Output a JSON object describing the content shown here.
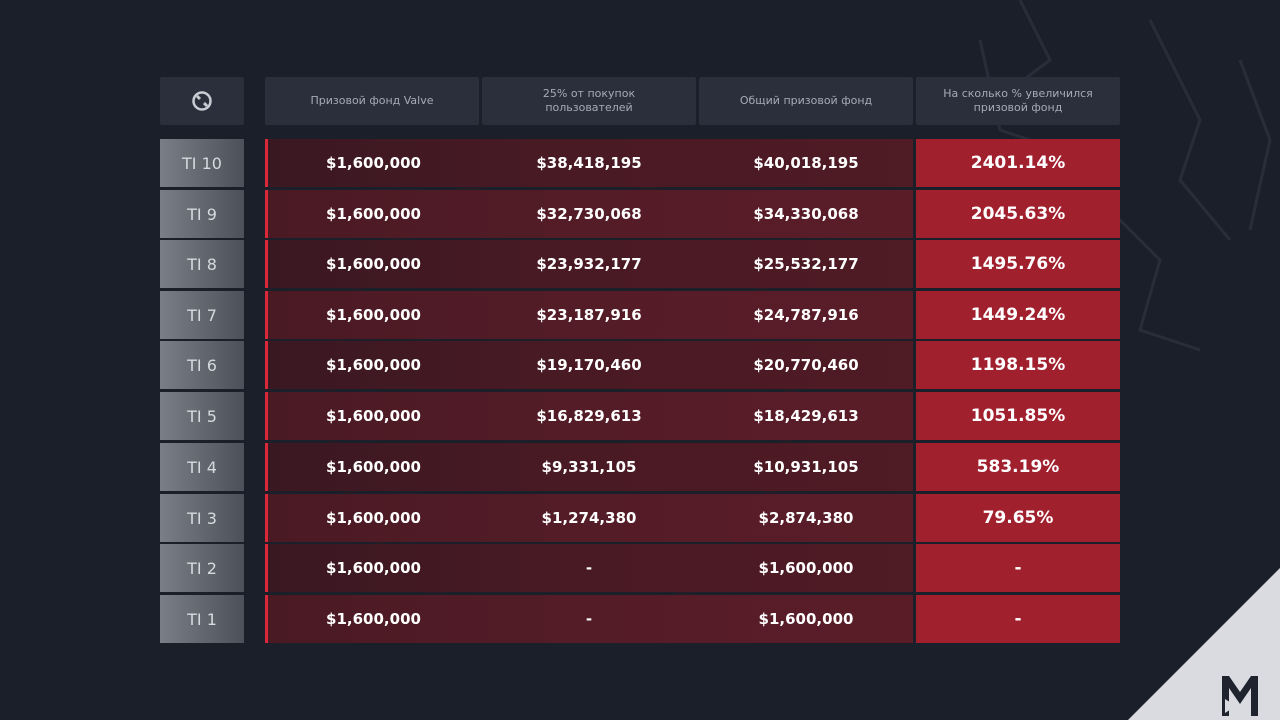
{
  "colors": {
    "background": "#1b1f29",
    "accent": "#d8283a",
    "highlight": "#a1202e"
  },
  "header": {
    "logo_icon": "dota-logo-icon",
    "columns": [
      "Призовой фонд Valve",
      "25% от покупок пользователей",
      "Общий призовой фонд",
      "На сколько % увеличился призовой фонд"
    ]
  },
  "rows": [
    {
      "label": "TI 10",
      "valve": "$1,600,000",
      "user": "$38,418,195",
      "total": "$40,018,195",
      "increase": "2401.14%"
    },
    {
      "label": "TI 9",
      "valve": "$1,600,000",
      "user": "$32,730,068",
      "total": "$34,330,068",
      "increase": "2045.63%"
    },
    {
      "label": "TI 8",
      "valve": "$1,600,000",
      "user": "$23,932,177",
      "total": "$25,532,177",
      "increase": "1495.76%"
    },
    {
      "label": "TI 7",
      "valve": "$1,600,000",
      "user": "$23,187,916",
      "total": "$24,787,916",
      "increase": "1449.24%"
    },
    {
      "label": "TI 6",
      "valve": "$1,600,000",
      "user": "$19,170,460",
      "total": "$20,770,460",
      "increase": "1198.15%"
    },
    {
      "label": "TI 5",
      "valve": "$1,600,000",
      "user": "$16,829,613",
      "total": "$18,429,613",
      "increase": "1051.85%"
    },
    {
      "label": "TI 4",
      "valve": "$1,600,000",
      "user": "$9,331,105",
      "total": "$10,931,105",
      "increase": "583.19%"
    },
    {
      "label": "TI 3",
      "valve": "$1,600,000",
      "user": "$1,274,380",
      "total": "$2,874,380",
      "increase": "79.65%"
    },
    {
      "label": "TI 2",
      "valve": "$1,600,000",
      "user": "-",
      "total": "$1,600,000",
      "increase": "-"
    },
    {
      "label": "TI 1",
      "valve": "$1,600,000",
      "user": "-",
      "total": "$1,600,000",
      "increase": "-"
    }
  ],
  "brand": {
    "logo_icon": "m-brand-logo-icon"
  }
}
